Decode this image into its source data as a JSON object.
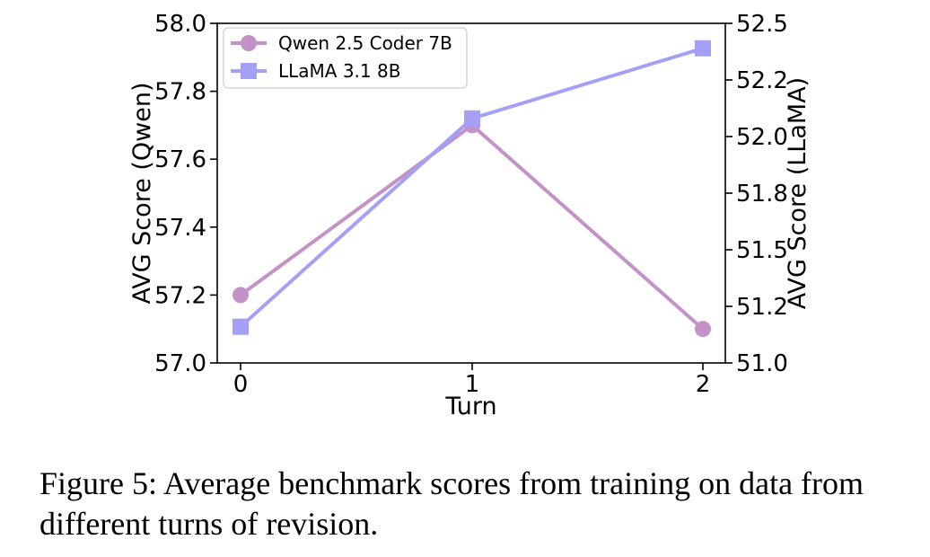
{
  "chart_data": {
    "type": "line",
    "x": [
      0,
      1,
      2
    ],
    "xlabel": "Turn",
    "x_ticks": [
      "0",
      "1",
      "2"
    ],
    "y_left": {
      "label": "AVG Score (Qwen)",
      "ylim": [
        57.0,
        58.0
      ],
      "ticks": [
        "57.0",
        "57.2",
        "57.4",
        "57.6",
        "57.8",
        "58.0"
      ]
    },
    "y_right": {
      "label": "AVG Score (LLaMA)",
      "ylim": [
        51.0,
        52.5
      ],
      "ticks": [
        "51.0",
        "51.2",
        "51.5",
        "51.8",
        "52.0",
        "52.2",
        "52.5"
      ]
    },
    "series": [
      {
        "name": "Qwen 2.5 Coder 7B",
        "axis": "left",
        "marker": "circle",
        "color": "#c393c8",
        "values": [
          57.2,
          57.7,
          57.1
        ]
      },
      {
        "name": "LLaMA 3.1 8B",
        "axis": "right",
        "marker": "square",
        "color": "#a4a0f7",
        "values": [
          51.16,
          52.08,
          52.39
        ]
      }
    ],
    "legend": "top-left",
    "grid": false
  },
  "caption": "Figure 5: Average benchmark scores from training on data from different turns of revision."
}
